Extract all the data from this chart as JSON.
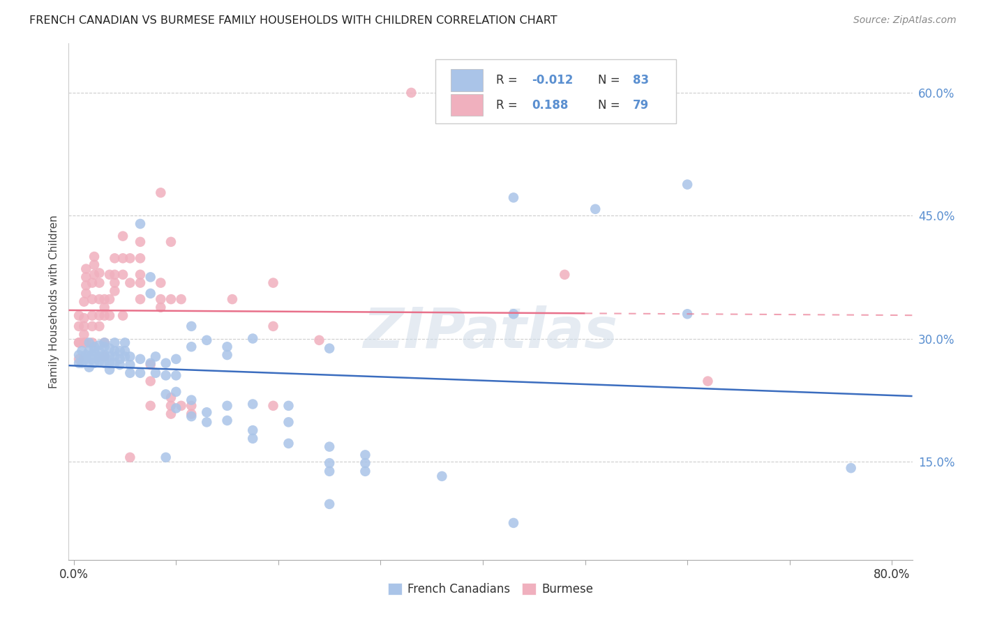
{
  "title": "FRENCH CANADIAN VS BURMESE FAMILY HOUSEHOLDS WITH CHILDREN CORRELATION CHART",
  "source": "Source: ZipAtlas.com",
  "ylabel": "Family Households with Children",
  "ytick_labels": [
    "60.0%",
    "45.0%",
    "30.0%",
    "15.0%"
  ],
  "ytick_values": [
    0.6,
    0.45,
    0.3,
    0.15
  ],
  "xtick_values": [
    0.0,
    0.1,
    0.2,
    0.3,
    0.4,
    0.5,
    0.6,
    0.7,
    0.8
  ],
  "xlim": [
    -0.005,
    0.82
  ],
  "ylim": [
    0.03,
    0.66
  ],
  "watermark": "ZIPatlas",
  "fc_color": "#aac4e8",
  "bm_color": "#f0b0be",
  "fc_line_color": "#3b6dbf",
  "bm_line_color": "#e8708a",
  "bm_r": 0.188,
  "bm_n": 79,
  "fc_r": -0.012,
  "fc_n": 83,
  "french_canadians": [
    [
      0.005,
      0.27
    ],
    [
      0.005,
      0.28
    ],
    [
      0.008,
      0.285
    ],
    [
      0.008,
      0.27
    ],
    [
      0.01,
      0.275
    ],
    [
      0.012,
      0.28
    ],
    [
      0.012,
      0.275
    ],
    [
      0.015,
      0.285
    ],
    [
      0.015,
      0.295
    ],
    [
      0.015,
      0.265
    ],
    [
      0.018,
      0.275
    ],
    [
      0.018,
      0.28
    ],
    [
      0.02,
      0.29
    ],
    [
      0.02,
      0.285
    ],
    [
      0.02,
      0.27
    ],
    [
      0.025,
      0.278
    ],
    [
      0.025,
      0.272
    ],
    [
      0.025,
      0.285
    ],
    [
      0.025,
      0.278
    ],
    [
      0.025,
      0.292
    ],
    [
      0.03,
      0.28
    ],
    [
      0.03,
      0.29
    ],
    [
      0.03,
      0.27
    ],
    [
      0.03,
      0.295
    ],
    [
      0.03,
      0.278
    ],
    [
      0.035,
      0.288
    ],
    [
      0.035,
      0.27
    ],
    [
      0.035,
      0.278
    ],
    [
      0.035,
      0.262
    ],
    [
      0.04,
      0.285
    ],
    [
      0.04,
      0.278
    ],
    [
      0.04,
      0.295
    ],
    [
      0.04,
      0.27
    ],
    [
      0.045,
      0.275
    ],
    [
      0.045,
      0.268
    ],
    [
      0.045,
      0.285
    ],
    [
      0.05,
      0.278
    ],
    [
      0.05,
      0.285
    ],
    [
      0.05,
      0.295
    ],
    [
      0.055,
      0.268
    ],
    [
      0.055,
      0.278
    ],
    [
      0.055,
      0.258
    ],
    [
      0.065,
      0.44
    ],
    [
      0.065,
      0.275
    ],
    [
      0.065,
      0.258
    ],
    [
      0.075,
      0.375
    ],
    [
      0.075,
      0.355
    ],
    [
      0.075,
      0.27
    ],
    [
      0.08,
      0.278
    ],
    [
      0.08,
      0.258
    ],
    [
      0.09,
      0.27
    ],
    [
      0.09,
      0.232
    ],
    [
      0.09,
      0.255
    ],
    [
      0.09,
      0.155
    ],
    [
      0.1,
      0.275
    ],
    [
      0.1,
      0.255
    ],
    [
      0.1,
      0.235
    ],
    [
      0.1,
      0.215
    ],
    [
      0.115,
      0.315
    ],
    [
      0.115,
      0.29
    ],
    [
      0.115,
      0.225
    ],
    [
      0.115,
      0.205
    ],
    [
      0.13,
      0.298
    ],
    [
      0.13,
      0.21
    ],
    [
      0.13,
      0.198
    ],
    [
      0.15,
      0.29
    ],
    [
      0.15,
      0.28
    ],
    [
      0.15,
      0.218
    ],
    [
      0.15,
      0.2
    ],
    [
      0.175,
      0.3
    ],
    [
      0.175,
      0.22
    ],
    [
      0.175,
      0.188
    ],
    [
      0.175,
      0.178
    ],
    [
      0.21,
      0.218
    ],
    [
      0.21,
      0.198
    ],
    [
      0.21,
      0.172
    ],
    [
      0.25,
      0.288
    ],
    [
      0.25,
      0.168
    ],
    [
      0.25,
      0.148
    ],
    [
      0.25,
      0.138
    ],
    [
      0.25,
      0.098
    ],
    [
      0.285,
      0.158
    ],
    [
      0.285,
      0.148
    ],
    [
      0.285,
      0.138
    ],
    [
      0.36,
      0.132
    ],
    [
      0.43,
      0.472
    ],
    [
      0.43,
      0.33
    ],
    [
      0.43,
      0.075
    ],
    [
      0.51,
      0.458
    ],
    [
      0.6,
      0.488
    ],
    [
      0.6,
      0.33
    ],
    [
      0.76,
      0.142
    ]
  ],
  "burmese": [
    [
      0.005,
      0.295
    ],
    [
      0.005,
      0.275
    ],
    [
      0.005,
      0.295
    ],
    [
      0.005,
      0.315
    ],
    [
      0.005,
      0.328
    ],
    [
      0.01,
      0.305
    ],
    [
      0.01,
      0.315
    ],
    [
      0.01,
      0.295
    ],
    [
      0.01,
      0.325
    ],
    [
      0.01,
      0.345
    ],
    [
      0.012,
      0.295
    ],
    [
      0.012,
      0.355
    ],
    [
      0.012,
      0.365
    ],
    [
      0.012,
      0.375
    ],
    [
      0.012,
      0.385
    ],
    [
      0.018,
      0.295
    ],
    [
      0.018,
      0.315
    ],
    [
      0.018,
      0.328
    ],
    [
      0.018,
      0.348
    ],
    [
      0.018,
      0.368
    ],
    [
      0.02,
      0.378
    ],
    [
      0.02,
      0.39
    ],
    [
      0.02,
      0.4
    ],
    [
      0.025,
      0.315
    ],
    [
      0.025,
      0.328
    ],
    [
      0.025,
      0.348
    ],
    [
      0.025,
      0.368
    ],
    [
      0.025,
      0.38
    ],
    [
      0.03,
      0.328
    ],
    [
      0.03,
      0.338
    ],
    [
      0.03,
      0.348
    ],
    [
      0.03,
      0.295
    ],
    [
      0.03,
      0.278
    ],
    [
      0.035,
      0.328
    ],
    [
      0.035,
      0.348
    ],
    [
      0.035,
      0.378
    ],
    [
      0.04,
      0.358
    ],
    [
      0.04,
      0.368
    ],
    [
      0.04,
      0.378
    ],
    [
      0.04,
      0.398
    ],
    [
      0.048,
      0.328
    ],
    [
      0.048,
      0.378
    ],
    [
      0.048,
      0.398
    ],
    [
      0.048,
      0.425
    ],
    [
      0.055,
      0.368
    ],
    [
      0.055,
      0.398
    ],
    [
      0.055,
      0.155
    ],
    [
      0.065,
      0.348
    ],
    [
      0.065,
      0.368
    ],
    [
      0.065,
      0.378
    ],
    [
      0.065,
      0.398
    ],
    [
      0.065,
      0.418
    ],
    [
      0.075,
      0.248
    ],
    [
      0.075,
      0.268
    ],
    [
      0.075,
      0.218
    ],
    [
      0.085,
      0.478
    ],
    [
      0.085,
      0.368
    ],
    [
      0.085,
      0.348
    ],
    [
      0.085,
      0.338
    ],
    [
      0.095,
      0.418
    ],
    [
      0.095,
      0.348
    ],
    [
      0.095,
      0.228
    ],
    [
      0.095,
      0.218
    ],
    [
      0.095,
      0.208
    ],
    [
      0.105,
      0.348
    ],
    [
      0.105,
      0.218
    ],
    [
      0.115,
      0.218
    ],
    [
      0.115,
      0.208
    ],
    [
      0.155,
      0.348
    ],
    [
      0.195,
      0.368
    ],
    [
      0.195,
      0.315
    ],
    [
      0.195,
      0.218
    ],
    [
      0.24,
      0.298
    ],
    [
      0.33,
      0.6
    ],
    [
      0.48,
      0.378
    ],
    [
      0.62,
      0.248
    ]
  ]
}
